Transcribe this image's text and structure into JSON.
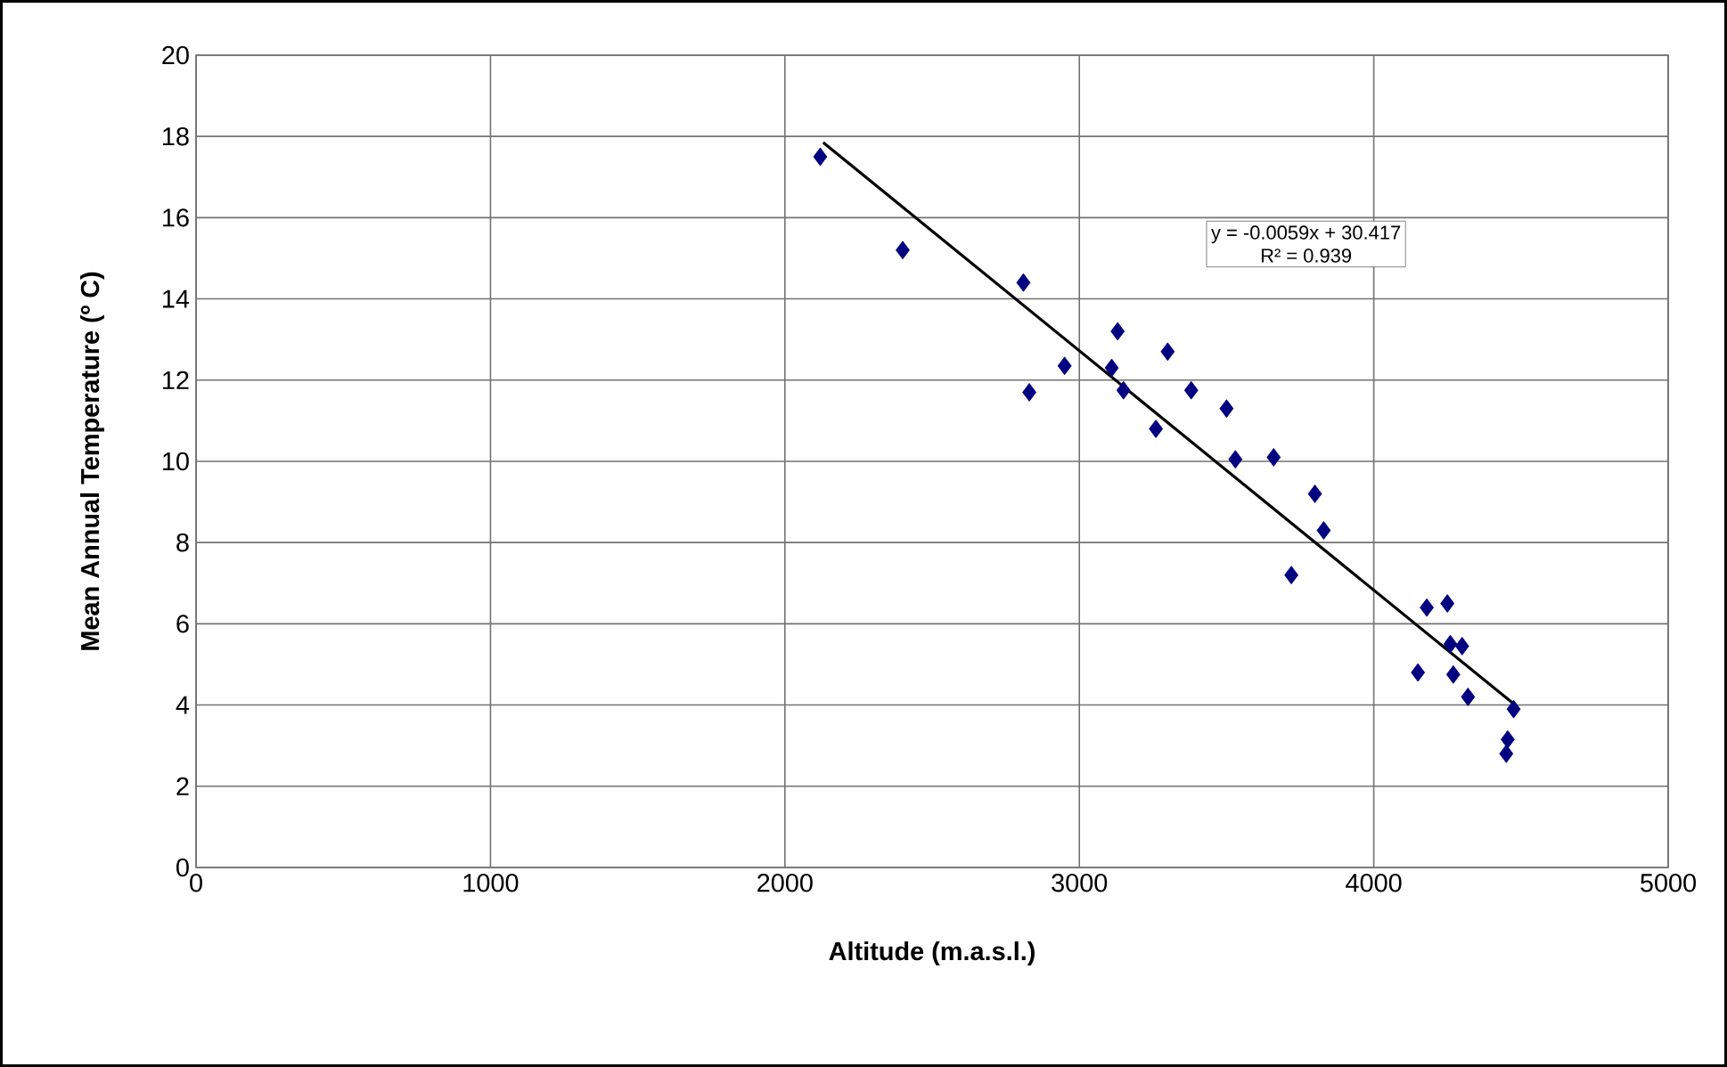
{
  "chart_data": {
    "type": "scatter",
    "xlabel": "Altitude (m.a.s.l.)",
    "ylabel": "Mean Annual Temperature (º C)",
    "xlim": [
      0,
      5000
    ],
    "xticks": [
      0,
      1000,
      2000,
      3000,
      4000,
      5000
    ],
    "ylim": [
      0,
      20
    ],
    "yticks": [
      0,
      2,
      4,
      6,
      8,
      10,
      12,
      14,
      16,
      18,
      20
    ],
    "grid": true,
    "marker": "diamond",
    "annotations": [
      "y = -0.0059x + 30.417",
      "R² = 0.939"
    ],
    "series": [
      {
        "color": "#000080",
        "x": [
          2120,
          2400,
          2810,
          2830,
          2950,
          3110,
          3130,
          3150,
          3260,
          3300,
          3380,
          3500,
          3530,
          3660,
          3720,
          3800,
          3830,
          4150,
          4180,
          4250,
          4260,
          4270,
          4300,
          4320,
          4450,
          4455,
          4475
        ],
        "values": [
          17.5,
          15.2,
          14.4,
          11.7,
          12.35,
          12.3,
          13.2,
          11.75,
          10.8,
          12.7,
          11.75,
          11.3,
          10.05,
          10.1,
          7.2,
          9.2,
          8.3,
          4.8,
          6.4,
          6.5,
          5.5,
          4.75,
          5.45,
          4.2,
          2.8,
          3.15,
          3.9
        ]
      },
      {
        "type": "line",
        "color": "#000000",
        "marker": "none",
        "x": [
          2130,
          4480
        ],
        "values": [
          17.85,
          4.0
        ]
      }
    ]
  }
}
